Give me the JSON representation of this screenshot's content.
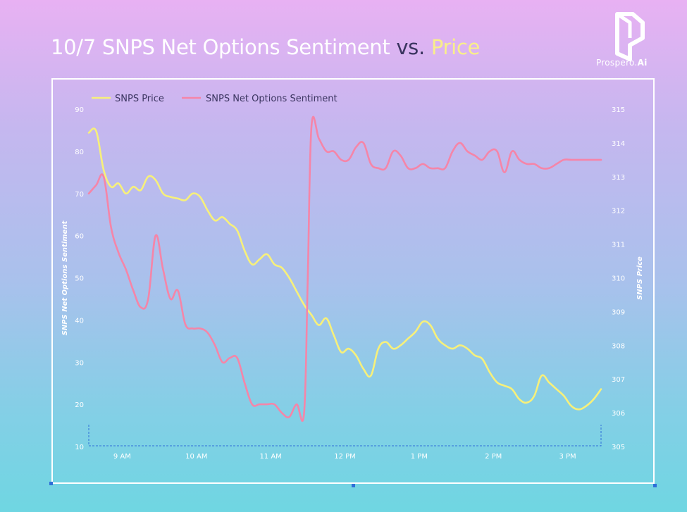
{
  "header": {
    "title_part1": "10/7 SNPS Net Options Sentiment",
    "title_vs": " vs. ",
    "title_part2": "Price"
  },
  "logo": {
    "icon": "prospero-p-logo-icon",
    "text_main": "Prospero.",
    "text_suffix": "Ai",
    "color": "#ffffff"
  },
  "chart_data": {
    "type": "line",
    "title": "10/7 SNPS Net Options Sentiment vs. Price",
    "x_ticks": [
      "9 AM",
      "10 AM",
      "11 AM",
      "12 PM",
      "1 PM",
      "2 PM",
      "3 PM"
    ],
    "y_left": {
      "label": "SNPS Net Options Sentiment",
      "range": [
        10,
        90
      ],
      "ticks": [
        10,
        20,
        30,
        40,
        50,
        60,
        70,
        80,
        90
      ]
    },
    "y_right": {
      "label": "SNPS Price",
      "range": [
        305,
        315
      ],
      "ticks": [
        305,
        306,
        307,
        308,
        309,
        310,
        311,
        312,
        313,
        314,
        315
      ]
    },
    "legend": {
      "placement": "top-left"
    },
    "grid": false,
    "series": [
      {
        "name": "SNPS Price",
        "axis": "right",
        "color": "#f7f07a",
        "x_hours": [
          8.55,
          8.65,
          8.75,
          8.85,
          8.95,
          9.05,
          9.15,
          9.25,
          9.35,
          9.45,
          9.55,
          9.65,
          9.75,
          9.85,
          9.95,
          10.05,
          10.15,
          10.25,
          10.35,
          10.45,
          10.55,
          10.65,
          10.75,
          10.85,
          10.95,
          11.05,
          11.15,
          11.25,
          11.35,
          11.45,
          11.55,
          11.65,
          11.75,
          11.85,
          11.95,
          12.05,
          12.15,
          12.25,
          12.35,
          12.45,
          12.55,
          12.65,
          12.75,
          12.85,
          12.95,
          13.05,
          13.15,
          13.25,
          13.35,
          13.45,
          13.55,
          13.65,
          13.75,
          13.85,
          13.95,
          14.05,
          14.15,
          14.25,
          14.35,
          14.45,
          14.55,
          14.65,
          14.75,
          14.85,
          14.95,
          15.05,
          15.15,
          15.25,
          15.35,
          15.45
        ],
        "values": [
          314.3,
          314.35,
          313.2,
          312.7,
          312.8,
          312.5,
          312.7,
          312.6,
          313.0,
          312.9,
          312.5,
          312.4,
          312.35,
          312.3,
          312.5,
          312.4,
          312.0,
          311.7,
          311.8,
          311.6,
          311.4,
          310.8,
          310.4,
          310.55,
          310.7,
          310.4,
          310.3,
          310.0,
          309.6,
          309.2,
          308.9,
          308.6,
          308.8,
          308.3,
          307.8,
          307.9,
          307.7,
          307.3,
          307.1,
          307.9,
          308.1,
          307.9,
          308.0,
          308.2,
          308.4,
          308.7,
          308.6,
          308.2,
          308.0,
          307.9,
          308.0,
          307.9,
          307.7,
          307.6,
          307.2,
          306.9,
          306.8,
          306.7,
          306.4,
          306.3,
          306.5,
          307.1,
          306.9,
          306.7,
          306.5,
          306.2,
          306.1,
          306.2,
          306.4,
          306.7
        ]
      },
      {
        "name": "SNPS Net Options Sentiment",
        "axis": "left",
        "color": "#f585a8",
        "x_hours": [
          8.55,
          8.65,
          8.75,
          8.85,
          8.95,
          9.05,
          9.15,
          9.25,
          9.35,
          9.45,
          9.55,
          9.65,
          9.75,
          9.85,
          9.95,
          10.05,
          10.15,
          10.25,
          10.35,
          10.45,
          10.55,
          10.65,
          10.75,
          10.85,
          10.95,
          11.05,
          11.15,
          11.25,
          11.35,
          11.45,
          11.5,
          11.55,
          11.65,
          11.75,
          11.85,
          11.95,
          12.05,
          12.15,
          12.25,
          12.35,
          12.45,
          12.55,
          12.65,
          12.75,
          12.85,
          12.95,
          13.05,
          13.15,
          13.25,
          13.35,
          13.45,
          13.55,
          13.65,
          13.75,
          13.85,
          13.95,
          14.05,
          14.15,
          14.25,
          14.35,
          14.45,
          14.55,
          14.65,
          14.75,
          14.85,
          14.95,
          15.05,
          15.15,
          15.25,
          15.35,
          15.45
        ],
        "values": [
          70,
          72,
          74,
          62,
          56,
          52,
          47,
          43,
          45,
          60,
          52,
          45,
          47,
          39,
          38,
          38,
          37,
          34,
          30,
          31,
          31,
          25,
          20,
          20,
          20,
          20,
          18,
          17,
          20,
          18,
          50,
          86,
          83,
          80,
          80,
          78,
          78,
          81,
          82,
          77,
          76,
          76,
          80,
          79,
          76,
          76,
          77,
          76,
          76,
          76,
          80,
          82,
          80,
          79,
          78,
          80,
          80,
          75,
          80,
          78,
          77,
          77,
          76,
          76,
          77,
          78,
          78,
          78,
          78,
          78,
          78
        ]
      }
    ]
  }
}
